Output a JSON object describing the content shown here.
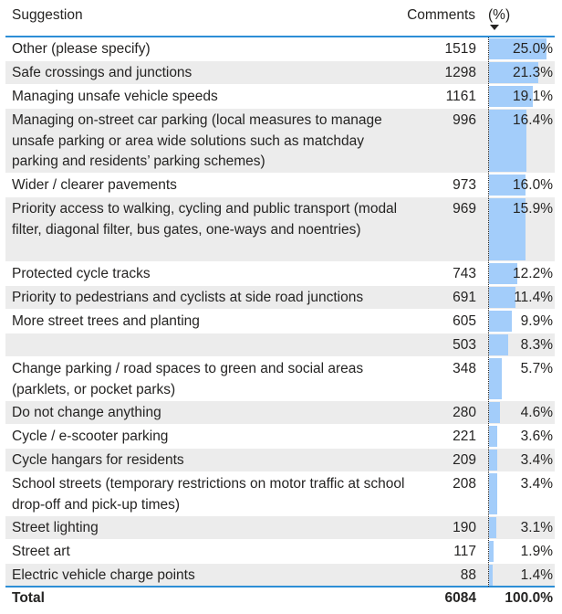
{
  "table": {
    "headers": {
      "suggestion": "Suggestion",
      "comments": "Comments",
      "percent": "(%)",
      "sort_icon": "sort-descending-icon"
    },
    "bar_color": "#a3cdfa",
    "accent_color": "#2d8ed6",
    "rows": [
      {
        "suggestion": "Other (please specify)",
        "comments": "1519",
        "percent": "25.0%",
        "pct_value": 25.0,
        "lines": 1
      },
      {
        "suggestion": "Safe crossings and junctions",
        "comments": "1298",
        "percent": "21.3%",
        "pct_value": 21.3,
        "lines": 1
      },
      {
        "suggestion": "Managing unsafe vehicle speeds",
        "comments": "1161",
        "percent": "19.1%",
        "pct_value": 19.1,
        "lines": 1
      },
      {
        "suggestion": "Managing on-street car parking (local measures to manage unsafe parking or area wide solutions such as matchday parking and residents’ parking schemes)",
        "comments": "996",
        "percent": "16.4%",
        "pct_value": 16.4,
        "lines": 3
      },
      {
        "suggestion": "Wider / clearer pavements",
        "comments": "973",
        "percent": "16.0%",
        "pct_value": 16.0,
        "lines": 1
      },
      {
        "suggestion": "Priority access to walking, cycling and public transport (modal filter, diagonal filter, bus gates, one-ways and noentries)",
        "comments": "969",
        "percent": "15.9%",
        "pct_value": 15.9,
        "lines": 3
      },
      {
        "suggestion": "Protected cycle tracks",
        "comments": "743",
        "percent": "12.2%",
        "pct_value": 12.2,
        "lines": 1
      },
      {
        "suggestion": "Priority to pedestrians and cyclists at side road junctions",
        "comments": "691",
        "percent": "11.4%",
        "pct_value": 11.4,
        "lines": 1
      },
      {
        "suggestion": "More street trees and planting",
        "comments": "605",
        "percent": "9.9%",
        "pct_value": 9.9,
        "lines": 1
      },
      {
        "suggestion": "",
        "comments": "503",
        "percent": "8.3%",
        "pct_value": 8.3,
        "lines": 1
      },
      {
        "suggestion": "Change parking / road spaces to green and social areas (parklets, or pocket parks)",
        "comments": "348",
        "percent": "5.7%",
        "pct_value": 5.7,
        "lines": 2
      },
      {
        "suggestion": "Do not change anything",
        "comments": "280",
        "percent": "4.6%",
        "pct_value": 4.6,
        "lines": 1
      },
      {
        "suggestion": "Cycle / e-scooter parking",
        "comments": "221",
        "percent": "3.6%",
        "pct_value": 3.6,
        "lines": 1
      },
      {
        "suggestion": "Cycle hangars for residents",
        "comments": "209",
        "percent": "3.4%",
        "pct_value": 3.4,
        "lines": 1
      },
      {
        "suggestion": "School streets (temporary restrictions on motor traffic at school drop-off and pick-up times)",
        "comments": "208",
        "percent": "3.4%",
        "pct_value": 3.4,
        "lines": 2
      },
      {
        "suggestion": "Street lighting",
        "comments": "190",
        "percent": "3.1%",
        "pct_value": 3.1,
        "lines": 1
      },
      {
        "suggestion": "Street art",
        "comments": "117",
        "percent": "1.9%",
        "pct_value": 1.9,
        "lines": 1
      },
      {
        "suggestion": "Electric vehicle charge points",
        "comments": "88",
        "percent": "1.4%",
        "pct_value": 1.4,
        "lines": 1
      }
    ],
    "total": {
      "label": "Total",
      "comments": "6084",
      "percent": "100.0%"
    }
  }
}
